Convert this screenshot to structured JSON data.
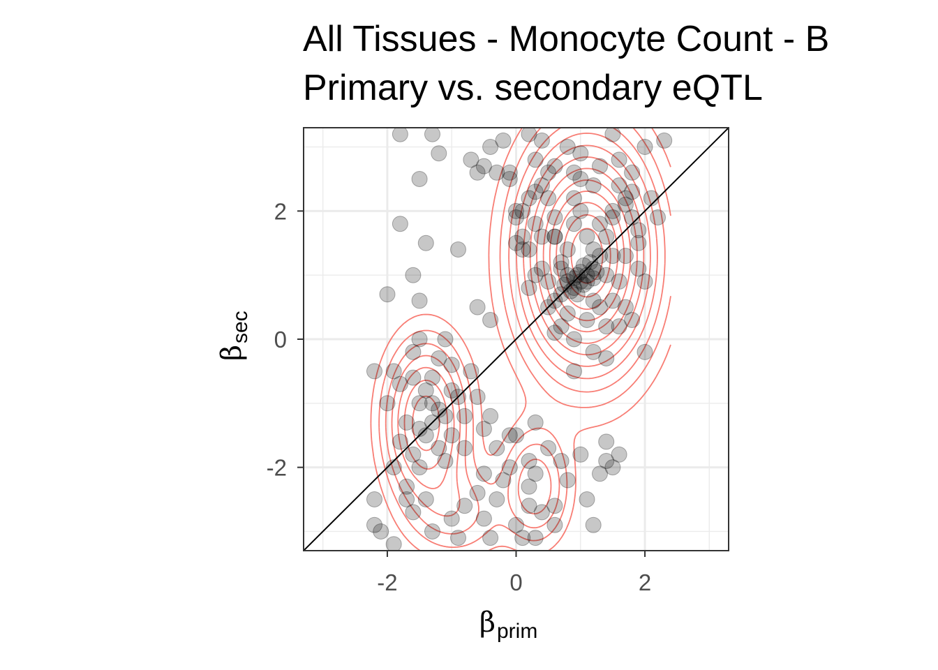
{
  "chart_data": {
    "type": "scatter",
    "title_line1": "All Tissues - Monocyte Count - B",
    "title_line2": "Primary vs. secondary eQTL",
    "xlabel_symbol": "β",
    "xlabel_sub": "prim",
    "ylabel_symbol": "β",
    "ylabel_sub": "sec",
    "xlim": [
      -3.3,
      3.3
    ],
    "ylim": [
      -3.3,
      3.3
    ],
    "x_ticks": [
      -2,
      0,
      2
    ],
    "x_tick_labels": [
      "-2",
      "0",
      "2"
    ],
    "y_ticks": [
      -2,
      0,
      2
    ],
    "y_tick_labels": [
      "-2",
      "0",
      "2"
    ],
    "grid": true,
    "reference_line": "y = x",
    "point_color": "#000000",
    "point_alpha": 0.22,
    "contour_color": "#f8766d",
    "density_clusters": [
      {
        "cx": 1.1,
        "cy": 1.3,
        "sx": 0.6,
        "sy": 1.05,
        "w": 1.0
      },
      {
        "cx": -1.4,
        "cy": -1.3,
        "sx": 0.38,
        "sy": 0.75,
        "w": 0.5
      },
      {
        "cx": 0.3,
        "cy": -2.3,
        "sx": 0.32,
        "sy": 0.55,
        "w": 0.25
      },
      {
        "cx": -0.9,
        "cy": -2.7,
        "sx": 0.45,
        "sy": 0.45,
        "w": 0.15
      }
    ],
    "contour_levels": [
      0.04,
      0.08,
      0.13,
      0.19,
      0.26,
      0.34,
      0.43,
      0.53,
      0.63,
      0.73,
      0.83,
      0.92
    ],
    "points": [
      [
        1.0,
        0.9
      ],
      [
        0.9,
        0.8
      ],
      [
        1.1,
        1.0
      ],
      [
        0.8,
        0.9
      ],
      [
        1.2,
        1.1
      ],
      [
        0.95,
        1.0
      ],
      [
        1.05,
        0.85
      ],
      [
        0.85,
        0.75
      ],
      [
        1.15,
        1.2
      ],
      [
        0.75,
        0.85
      ],
      [
        1.0,
        1.05
      ],
      [
        0.9,
        0.95
      ],
      [
        1.1,
        0.9
      ],
      [
        1.3,
        1.3
      ],
      [
        0.7,
        0.7
      ],
      [
        1.2,
        0.95
      ],
      [
        0.95,
        0.7
      ],
      [
        1.05,
        1.15
      ],
      [
        0.8,
        1.0
      ],
      [
        1.25,
        1.05
      ],
      [
        0.6,
        1.6
      ],
      [
        0.0,
        1.5
      ],
      [
        0.1,
        2.0
      ],
      [
        0.5,
        2.2
      ],
      [
        1.2,
        2.4
      ],
      [
        1.5,
        2.0
      ],
      [
        0.3,
        1.8
      ],
      [
        -0.1,
        2.6
      ],
      [
        0.6,
        2.7
      ],
      [
        0.9,
        2.2
      ],
      [
        1.8,
        2.3
      ],
      [
        1.4,
        1.6
      ],
      [
        1.9,
        1.5
      ],
      [
        2.0,
        0.9
      ],
      [
        1.6,
        0.9
      ],
      [
        1.3,
        0.5
      ],
      [
        0.7,
        0.2
      ],
      [
        0.4,
        1.1
      ],
      [
        0.2,
        1.4
      ],
      [
        1.7,
        1.3
      ],
      [
        0.2,
        0.8
      ],
      [
        0.5,
        0.5
      ],
      [
        1.1,
        0.3
      ],
      [
        1.5,
        0.6
      ],
      [
        0.9,
        0.0
      ],
      [
        1.2,
        -0.2
      ],
      [
        0.9,
        -0.5
      ],
      [
        2.0,
        -0.2
      ],
      [
        1.8,
        1.9
      ],
      [
        2.2,
        1.9
      ],
      [
        0.8,
        1.4
      ],
      [
        0.4,
        1.6
      ],
      [
        0.1,
        1.4
      ],
      [
        0.4,
        2.4
      ],
      [
        0.0,
        2.0
      ],
      [
        0.6,
        1.9
      ],
      [
        1.3,
        2.7
      ],
      [
        1.0,
        2.0
      ],
      [
        0.9,
        2.6
      ],
      [
        1.6,
        2.8
      ],
      [
        -0.1,
        2.5
      ],
      [
        0.3,
        2.3
      ],
      [
        1.5,
        1.3
      ],
      [
        0.7,
        1.1
      ],
      [
        1.7,
        0.5
      ],
      [
        1.4,
        0.2
      ],
      [
        1.3,
        1.8
      ],
      [
        0.5,
        0.9
      ],
      [
        0.3,
        1.0
      ],
      [
        1.8,
        0.3
      ],
      [
        0.2,
        2.2
      ],
      [
        1.1,
        1.6
      ],
      [
        1.4,
        1.0
      ],
      [
        0.8,
        0.4
      ],
      [
        0.6,
        0.6
      ],
      [
        1.9,
        1.1
      ],
      [
        -0.6,
        2.6
      ],
      [
        -0.4,
        3.0
      ],
      [
        -0.2,
        3.1
      ],
      [
        0.2,
        3.2
      ],
      [
        -0.7,
        2.8
      ],
      [
        0.8,
        3.0
      ],
      [
        1.5,
        3.2
      ],
      [
        2.0,
        3.0
      ],
      [
        2.3,
        3.1
      ],
      [
        -1.3,
        3.2
      ],
      [
        -1.2,
        2.9
      ],
      [
        -0.5,
        2.7
      ],
      [
        -1.8,
        3.2
      ],
      [
        -1.5,
        2.5
      ],
      [
        -1.8,
        1.8
      ],
      [
        -1.4,
        1.5
      ],
      [
        -0.9,
        1.4
      ],
      [
        -1.6,
        1.0
      ],
      [
        -2.0,
        0.7
      ],
      [
        -1.5,
        0.6
      ],
      [
        1.0,
        2.9
      ],
      [
        0.4,
        3.1
      ],
      [
        -1.4,
        -1.5
      ],
      [
        -1.3,
        -1.3
      ],
      [
        -1.5,
        -1.0
      ],
      [
        -1.2,
        -1.7
      ],
      [
        -1.6,
        -1.8
      ],
      [
        -1.4,
        -0.8
      ],
      [
        -1.1,
        -1.2
      ],
      [
        -1.7,
        -1.3
      ],
      [
        -1.3,
        -0.6
      ],
      [
        -1.0,
        -1.5
      ],
      [
        -1.8,
        -0.7
      ],
      [
        -1.5,
        -2.0
      ],
      [
        -1.2,
        -0.3
      ],
      [
        -1.6,
        -0.2
      ],
      [
        -1.9,
        -0.5
      ],
      [
        -2.0,
        -1.0
      ],
      [
        -1.0,
        -0.8
      ],
      [
        -0.8,
        -1.2
      ],
      [
        -1.1,
        -1.9
      ],
      [
        -1.7,
        -2.3
      ],
      [
        -1.4,
        -2.5
      ],
      [
        -1.9,
        -2.0
      ],
      [
        -1.5,
        0.0
      ],
      [
        -1.1,
        0.0
      ],
      [
        -1.8,
        -1.6
      ],
      [
        -1.3,
        -1.0
      ],
      [
        -1.0,
        -0.4
      ],
      [
        -1.5,
        -1.4
      ],
      [
        -1.2,
        -1.1
      ],
      [
        -1.6,
        -0.6
      ],
      [
        -0.9,
        -0.9
      ],
      [
        -0.7,
        -0.5
      ],
      [
        -0.6,
        -0.9
      ],
      [
        -0.5,
        -1.4
      ],
      [
        -0.3,
        -1.7
      ],
      [
        -0.1,
        -2.0
      ],
      [
        0.2,
        -2.3
      ],
      [
        0.3,
        -2.1
      ],
      [
        0.4,
        -2.7
      ],
      [
        0.2,
        -2.6
      ],
      [
        0.0,
        -2.9
      ],
      [
        -0.3,
        -2.5
      ],
      [
        -0.5,
        -2.1
      ],
      [
        0.5,
        -1.7
      ],
      [
        0.7,
        -1.9
      ],
      [
        0.6,
        -2.6
      ],
      [
        0.3,
        -3.1
      ],
      [
        0.1,
        -3.1
      ],
      [
        -0.4,
        -3.1
      ],
      [
        -0.8,
        -2.6
      ],
      [
        -1.0,
        -2.8
      ],
      [
        -0.6,
        -2.4
      ],
      [
        -0.2,
        -2.2
      ],
      [
        0.2,
        -1.9
      ],
      [
        -0.8,
        -1.7
      ],
      [
        -0.4,
        -1.2
      ],
      [
        0.0,
        -1.5
      ],
      [
        0.3,
        -1.3
      ],
      [
        1.0,
        -1.8
      ],
      [
        1.4,
        -1.9
      ],
      [
        1.6,
        -1.8
      ],
      [
        1.3,
        -2.1
      ],
      [
        1.1,
        -2.5
      ],
      [
        1.2,
        -2.9
      ],
      [
        1.4,
        -1.6
      ],
      [
        1.5,
        -2.0
      ],
      [
        0.8,
        -2.2
      ],
      [
        0.6,
        -2.9
      ],
      [
        -2.2,
        -2.5
      ],
      [
        -2.2,
        -2.9
      ],
      [
        -1.9,
        -3.2
      ],
      [
        -1.6,
        -2.7
      ],
      [
        -1.3,
        -3.0
      ],
      [
        -0.9,
        -3.1
      ],
      [
        -0.5,
        -2.8
      ],
      [
        -2.1,
        -3.0
      ],
      [
        -1.7,
        -2.5
      ],
      [
        -0.6,
        0.5
      ],
      [
        -0.4,
        0.3
      ],
      [
        1.8,
        2.6
      ],
      [
        -2.2,
        -0.5
      ],
      [
        -0.1,
        -1.5
      ],
      [
        1.6,
        2.4
      ],
      [
        0.5,
        2.6
      ],
      [
        0.3,
        2.8
      ],
      [
        -0.3,
        2.6
      ],
      [
        1.0,
        2.5
      ],
      [
        1.7,
        2.2
      ],
      [
        0.7,
        1.2
      ],
      [
        1.9,
        1.7
      ],
      [
        2.1,
        2.2
      ],
      [
        1.7,
        2.1
      ],
      [
        1.2,
        0.6
      ],
      [
        1.6,
        0.2
      ],
      [
        0.6,
        0.1
      ],
      [
        1.4,
        -0.3
      ],
      [
        0.1,
        1.6
      ],
      [
        0.0,
        1.9
      ],
      [
        0.9,
        1.8
      ],
      [
        1.5,
        1.9
      ],
      [
        1.2,
        1.4
      ],
      [
        0.6,
        1.6
      ]
    ]
  }
}
